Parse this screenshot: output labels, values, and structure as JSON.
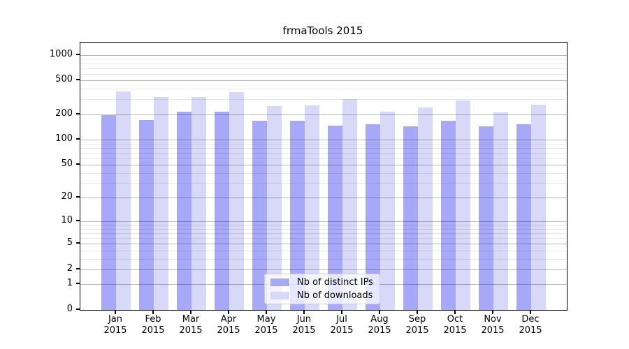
{
  "chart_data": {
    "type": "bar",
    "title": "frmaTools 2015",
    "categories": [
      "Jan",
      "Feb",
      "Mar",
      "Apr",
      "May",
      "Jun",
      "Jul",
      "Aug",
      "Sep",
      "Oct",
      "Nov",
      "Dec"
    ],
    "year_label": "2015",
    "series": [
      {
        "name": "Nb of distinct IPs",
        "color": "#a8a8f8",
        "values": [
          195,
          171,
          213,
          213,
          166,
          166,
          147,
          152,
          144,
          166,
          144,
          153
        ]
      },
      {
        "name": "Nb of downloads",
        "color": "#d8d8f8",
        "values": [
          372,
          321,
          322,
          362,
          248,
          253,
          300,
          216,
          241,
          292,
          209,
          261
        ]
      }
    ],
    "y_axis": {
      "scale": "log10(value+1)",
      "tick_values": [
        0,
        1,
        2,
        5,
        10,
        20,
        50,
        100,
        200,
        500,
        1000
      ],
      "tick_labels": [
        "0",
        "1",
        "2",
        "5",
        "10",
        "20",
        "50",
        "100",
        "200",
        "500",
        "1000"
      ],
      "minor_gridline_values": [
        3,
        4,
        6,
        7,
        8,
        9,
        30,
        40,
        60,
        70,
        80,
        90,
        300,
        400,
        600,
        700,
        800,
        900
      ],
      "ylim": [
        0,
        1400
      ]
    },
    "xlabel": "",
    "ylabel": "",
    "grid": "on",
    "legend_position": "lower center"
  }
}
